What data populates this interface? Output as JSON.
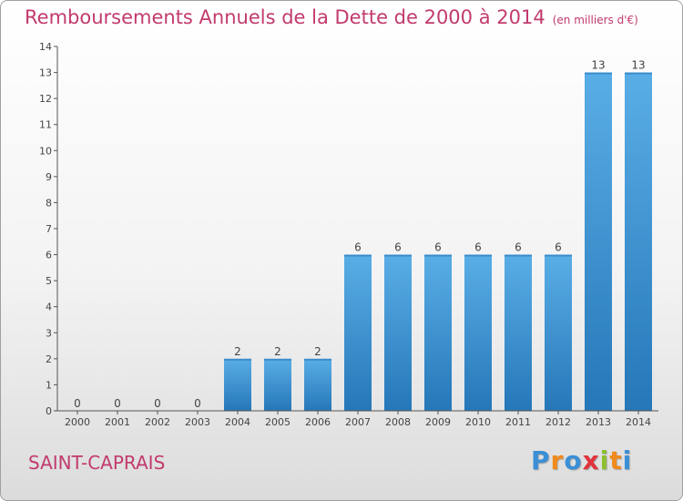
{
  "header": {
    "title": "Remboursements Annuels de la Dette de 2000 à 2014",
    "subtitle": "(en milliers d'€)"
  },
  "footer": {
    "commune": "SAINT-CAPRAIS",
    "logo_letters": [
      "P",
      "r",
      "o",
      "x",
      "i",
      "t",
      "i"
    ],
    "logo_colors": [
      "#3a8fd6",
      "#f08a1c",
      "#3a8fd6",
      "#e0343c",
      "#8cbf2e",
      "#f08a1c",
      "#3a8fd6"
    ]
  },
  "colors": {
    "bar_light": "#5aaee6",
    "bar_dark": "#2577b8",
    "axis": "#555555",
    "text": "#444444"
  },
  "chart_data": {
    "type": "bar",
    "categories": [
      "2000",
      "2001",
      "2002",
      "2003",
      "2004",
      "2005",
      "2006",
      "2007",
      "2008",
      "2009",
      "2010",
      "2011",
      "2012",
      "2013",
      "2014"
    ],
    "values": [
      0,
      0,
      0,
      0,
      2,
      2,
      2,
      6,
      6,
      6,
      6,
      6,
      6,
      13,
      13
    ],
    "data_labels": [
      "0",
      "0",
      "0",
      "0",
      "2",
      "2",
      "2",
      "6",
      "6",
      "6",
      "6",
      "6",
      "6",
      "13",
      "13"
    ],
    "yticks": [
      "0",
      "1",
      "2",
      "3",
      "4",
      "5",
      "6",
      "7",
      "8",
      "9",
      "10",
      "11",
      "12",
      "13",
      "14"
    ],
    "ylim": [
      0,
      14
    ],
    "title": "Remboursements Annuels de la Dette de 2000 à 2014",
    "xlabel": "",
    "ylabel": "",
    "grid": false,
    "legend": "none"
  }
}
